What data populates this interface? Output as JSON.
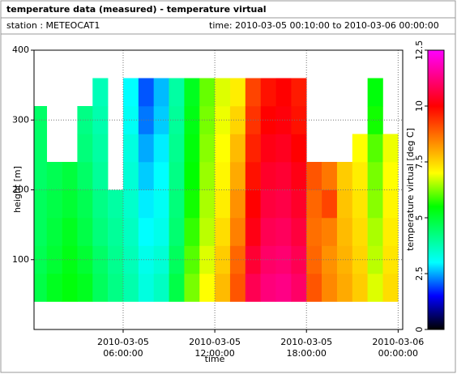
{
  "chart_data": {
    "type": "heatmap",
    "title": "temperature data (measured) - temperature virtual",
    "station": "station : METEOCAT1",
    "time_range": "time: 2010-03-05 00:10:00 to 2010-03-06 00:00:00",
    "x_label": "time",
    "y_label": "height [m]",
    "colorbar_label": "temperature virtual [deg C]",
    "xlim": [
      0.1667,
      24.3
    ],
    "xticks": [
      {
        "value": 6,
        "label": "2010-03-05 06:00:00"
      },
      {
        "value": 12,
        "label": "2010-03-05 12:00:00"
      },
      {
        "value": 18,
        "label": "2010-03-05 18:00:00"
      },
      {
        "value": 24,
        "label": "2010-03-06 00:00:00"
      }
    ],
    "ylim": [
      0,
      400
    ],
    "yticks": [
      100,
      200,
      300,
      400
    ],
    "clim": [
      0,
      12.5
    ],
    "cticks": [
      0,
      2.5,
      5,
      7.5,
      10,
      12.5
    ],
    "colorscale": [
      [
        0,
        "#000000"
      ],
      [
        1.5,
        "#0000ff"
      ],
      [
        3,
        "#00ffff"
      ],
      [
        5.5,
        "#00ff00"
      ],
      [
        7,
        "#ffff00"
      ],
      [
        8.5,
        "#ff8000"
      ],
      [
        10,
        "#ff0000"
      ],
      [
        12.5,
        "#ff00ff"
      ]
    ],
    "grid": true,
    "x_bins": [
      0.1667,
      1,
      2,
      3,
      4,
      5,
      6,
      7,
      8,
      9,
      10,
      11,
      12,
      13,
      14,
      15,
      16,
      17,
      18,
      19,
      20,
      21,
      22,
      23,
      24
    ],
    "y_bins": [
      40,
      80,
      120,
      160,
      200,
      240,
      280,
      320,
      360
    ],
    "values": [
      [
        4.8,
        4.7,
        4.6,
        4.6,
        4.5,
        4.5,
        4.5,
        null
      ],
      [
        5.2,
        5.0,
        4.9,
        4.8,
        4.7,
        null,
        null,
        null
      ],
      [
        5.4,
        5.3,
        5.2,
        5.0,
        4.9,
        null,
        null,
        null
      ],
      [
        5.2,
        5.0,
        4.8,
        4.7,
        4.5,
        4.3,
        4.2,
        null
      ],
      [
        4.6,
        4.5,
        4.3,
        4.2,
        4.0,
        3.9,
        3.8,
        3.7
      ],
      [
        4.2,
        4.1,
        4.0,
        3.9,
        null,
        null,
        null,
        null
      ],
      [
        3.8,
        3.7,
        3.6,
        3.5,
        3.4,
        3.3,
        3.1,
        3.0
      ],
      [
        3.3,
        3.2,
        3.0,
        2.9,
        2.7,
        2.5,
        2.2,
        2.0
      ],
      [
        3.6,
        3.4,
        3.2,
        3.1,
        3.0,
        2.9,
        2.7,
        2.6
      ],
      [
        4.8,
        4.6,
        4.4,
        4.3,
        4.2,
        4.1,
        4.0,
        3.9
      ],
      [
        6.2,
        6.0,
        5.8,
        5.6,
        5.5,
        5.4,
        5.3,
        5.2
      ],
      [
        7.0,
        6.8,
        6.6,
        6.5,
        6.4,
        6.3,
        6.2,
        6.1
      ],
      [
        7.8,
        7.6,
        7.4,
        7.2,
        7.1,
        7.0,
        6.9,
        6.8
      ],
      [
        9.0,
        8.8,
        8.5,
        8.3,
        8.0,
        7.8,
        7.5,
        7.2
      ],
      [
        10.8,
        10.5,
        10.2,
        10.0,
        9.8,
        9.6,
        9.4,
        9.2
      ],
      [
        11.2,
        11.0,
        10.8,
        10.6,
        10.4,
        10.2,
        10.0,
        9.8
      ],
      [
        11.3,
        11.1,
        10.9,
        10.7,
        10.5,
        10.3,
        10.1,
        10.0
      ],
      [
        11.0,
        10.8,
        10.6,
        10.4,
        10.2,
        10.0,
        9.8,
        9.7
      ],
      [
        9.0,
        8.8,
        8.7,
        8.8,
        9.0,
        null,
        null,
        null
      ],
      [
        8.4,
        8.3,
        8.5,
        9.2,
        8.6,
        null,
        null,
        null
      ],
      [
        8.0,
        7.9,
        7.8,
        7.7,
        7.6,
        null,
        null,
        null
      ],
      [
        7.6,
        7.5,
        7.4,
        7.3,
        7.2,
        7.0,
        null,
        null
      ],
      [
        6.8,
        6.6,
        6.5,
        6.3,
        6.2,
        6.0,
        5.6,
        5.4
      ],
      [
        7.4,
        7.3,
        7.2,
        7.1,
        7.0,
        6.9,
        null,
        null
      ]
    ]
  }
}
